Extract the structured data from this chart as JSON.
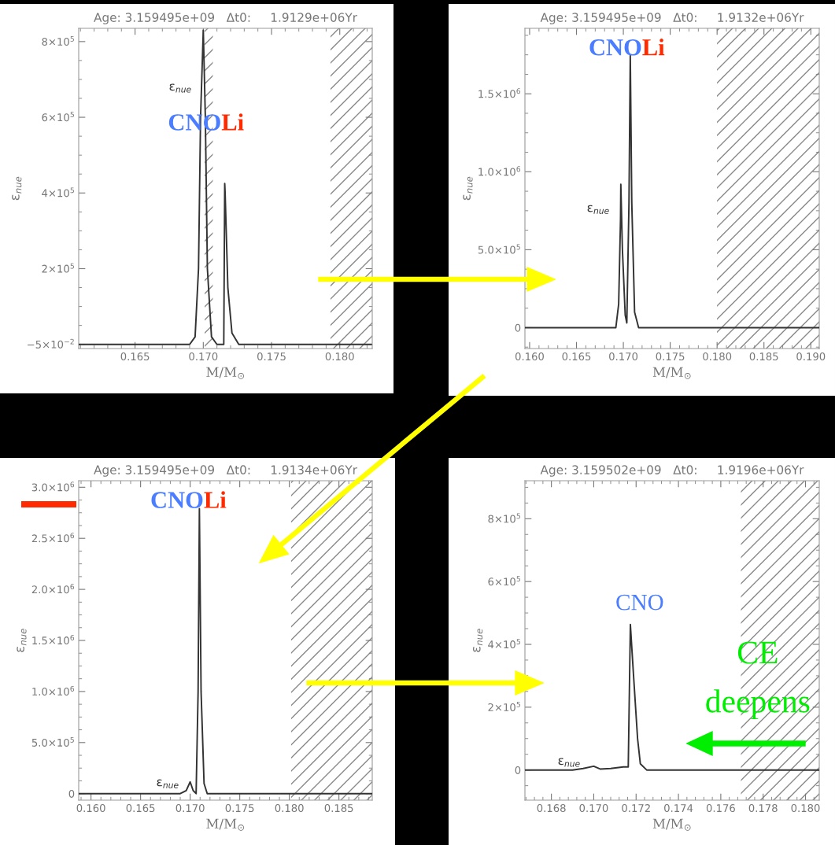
{
  "chart_data": [
    {
      "type": "line",
      "title": "Age: 3.159495e+09   Δt0:     1.9129e+06Yr",
      "xlabel": "M/M$_{⊙}$",
      "ylabel": "ε$_{nue}$",
      "xlim": [
        0.16087,
        0.18238
      ],
      "ylim": [
        -11000,
        835000
      ],
      "xticks": [
        {
          "value": 0.165,
          "label": "0.165"
        },
        {
          "value": 0.17,
          "label": "0.170"
        },
        {
          "value": 0.175,
          "label": "0.175"
        },
        {
          "value": 0.18,
          "label": "0.180"
        }
      ],
      "yticks": [
        {
          "value": -0.05,
          "label": "−5×10$^{−2}$"
        },
        {
          "value": 200000,
          "label": "2×10$^{5}$"
        },
        {
          "value": 400000,
          "label": "4×10$^{5}$"
        },
        {
          "value": 600000,
          "label": "6×10$^{5}$"
        },
        {
          "value": 800000,
          "label": "8×10$^{5}$"
        }
      ],
      "series": [
        {
          "color": "#333333",
          "x": [
            0.1609,
            0.169,
            0.1694,
            0.16965,
            0.1698,
            0.17,
            0.17015,
            0.1703,
            0.1706,
            0.171,
            0.1715,
            0.17157,
            0.1716,
            0.1718,
            0.1721,
            0.1726,
            0.1823
          ],
          "values": [
            0,
            0,
            20000,
            200000,
            600000,
            830000,
            600000,
            200000,
            20000,
            0,
            0,
            425000,
            400000,
            150000,
            30000,
            0,
            0
          ]
        }
      ],
      "bands": [
        {
          "axis": "x",
          "from": 0.1701,
          "to": 0.1707,
          "color": "#888888"
        },
        {
          "axis": "x",
          "from": 0.17932,
          "to": 0.18238,
          "color": "#888888"
        }
      ],
      "annotations": [
        "ε$_{nue}$",
        "CNO",
        "Li"
      ]
    },
    {
      "type": "line",
      "title": "Age: 3.159495e+09   Δt0:     1.9132e+06Yr",
      "xlabel": "M/M$_{⊙}$",
      "ylabel": "ε$_{nue}$",
      "xlim": [
        0.1595,
        0.1909
      ],
      "ylim": [
        -134000,
        1920000
      ],
      "xticks": [
        {
          "value": 0.16,
          "label": "0.160"
        },
        {
          "value": 0.165,
          "label": "0.165"
        },
        {
          "value": 0.17,
          "label": "0.170"
        },
        {
          "value": 0.175,
          "label": "0.175"
        },
        {
          "value": 0.18,
          "label": "0.180"
        },
        {
          "value": 0.185,
          "label": "0.185"
        },
        {
          "value": 0.19,
          "label": "0.190"
        }
      ],
      "yticks": [
        0,
        {
          "value": 500000,
          "label": "5.0×10$^{5}$"
        },
        {
          "value": 1000000,
          "label": "1.0×10$^{6}$"
        },
        {
          "value": 1500000,
          "label": "1.5×10$^{6}$"
        }
      ],
      "series": [
        {
          "color": "#333333",
          "x": [
            0.1595,
            0.1692,
            0.1695,
            0.1697,
            0.16973,
            0.1699,
            0.1702,
            0.17037,
            0.1706,
            0.17074,
            0.1709,
            0.1712,
            0.17163,
            0.1909
          ],
          "values": [
            0,
            0,
            150000,
            700000,
            920000,
            500000,
            80000,
            30000,
            800000,
            1750000,
            800000,
            100000,
            0,
            0
          ]
        }
      ],
      "bands": [
        {
          "axis": "x",
          "from": 0.17999,
          "to": 0.1909,
          "color": "#888888"
        }
      ],
      "annotations": [
        "ε$_{nue}$",
        "CNO",
        "Li"
      ]
    },
    {
      "type": "line",
      "title": "Age: 3.159495e+09   Δt0:     1.9134e+06Yr",
      "xlabel": "M/M$_{⊙}$",
      "ylabel": "ε$_{nue}$",
      "xlim": [
        0.15876,
        0.18836
      ],
      "ylim": [
        -64000,
        3064000
      ],
      "xticks": [
        {
          "value": 0.16,
          "label": "0.160"
        },
        {
          "value": 0.165,
          "label": "0.165"
        },
        {
          "value": 0.17,
          "label": "0.170"
        },
        {
          "value": 0.175,
          "label": "0.175"
        },
        {
          "value": 0.18,
          "label": "0.180"
        },
        {
          "value": 0.185,
          "label": "0.185"
        }
      ],
      "yticks": [
        0,
        {
          "value": 500000,
          "label": "5.0×10$^{5}$"
        },
        {
          "value": 1000000,
          "label": "1.0×10$^{6}$"
        },
        {
          "value": 1500000,
          "label": "1.5×10$^{6}$"
        },
        {
          "value": 2000000,
          "label": "2.0×10$^{6}$"
        },
        {
          "value": 2500000,
          "label": "2.5×10$^{6}$"
        },
        {
          "value": 3000000,
          "label": "3.0×10$^{6}$"
        }
      ],
      "series": [
        {
          "color": "#333333",
          "x": [
            0.1588,
            0.169,
            0.1696,
            0.17,
            0.1703,
            0.1706,
            0.1708,
            0.17093,
            0.1711,
            0.1714,
            0.17172,
            0.1883
          ],
          "values": [
            0,
            0,
            30000,
            115000,
            30000,
            0,
            1000000,
            2790000,
            1000000,
            100000,
            0,
            0
          ]
        }
      ],
      "bands": [
        {
          "axis": "x",
          "from": 0.18018,
          "to": 0.18836,
          "color": "#888888"
        }
      ],
      "annotations": [
        "ε$_{nue}$",
        "CNO",
        "Li"
      ]
    },
    {
      "type": "line",
      "title": "Age: 3.159502e+09   Δt0:     1.9196e+06Yr",
      "xlabel": "M/M$_{⊙}$",
      "ylabel": "ε$_{nue}$",
      "xlim": [
        0.16675,
        0.18065
      ],
      "ylim": [
        -96000,
        921000
      ],
      "xticks": [
        {
          "value": 0.168,
          "label": "0.168"
        },
        {
          "value": 0.17,
          "label": "0.170"
        },
        {
          "value": 0.172,
          "label": "0.172"
        },
        {
          "value": 0.174,
          "label": "0.174"
        },
        {
          "value": 0.176,
          "label": "0.176"
        },
        {
          "value": 0.178,
          "label": "0.178"
        },
        {
          "value": 0.18,
          "label": "0.180"
        }
      ],
      "yticks": [
        0,
        {
          "value": 200000,
          "label": "2×10$^{5}$"
        },
        {
          "value": 400000,
          "label": "4×10$^{5}$"
        },
        {
          "value": 600000,
          "label": "6×10$^{5}$"
        },
        {
          "value": 800000,
          "label": "8×10$^{5}$"
        }
      ],
      "series": [
        {
          "color": "#333333",
          "x": [
            0.16675,
            0.169,
            0.1695,
            0.17,
            0.1703,
            0.1708,
            0.1714,
            0.17163,
            0.17173,
            0.17188,
            0.17207,
            0.1722,
            0.1725,
            0.18065
          ],
          "values": [
            0,
            0,
            5000,
            12000,
            3000,
            5000,
            10000,
            10000,
            463000,
            300000,
            100000,
            20000,
            0,
            0
          ]
        }
      ],
      "bands": [
        {
          "axis": "x",
          "from": 0.17695,
          "to": 0.18065,
          "color": "#888888"
        }
      ],
      "annotations": [
        "ε$_{nue}$",
        "CNO",
        "CE",
        "deepens"
      ]
    }
  ]
}
